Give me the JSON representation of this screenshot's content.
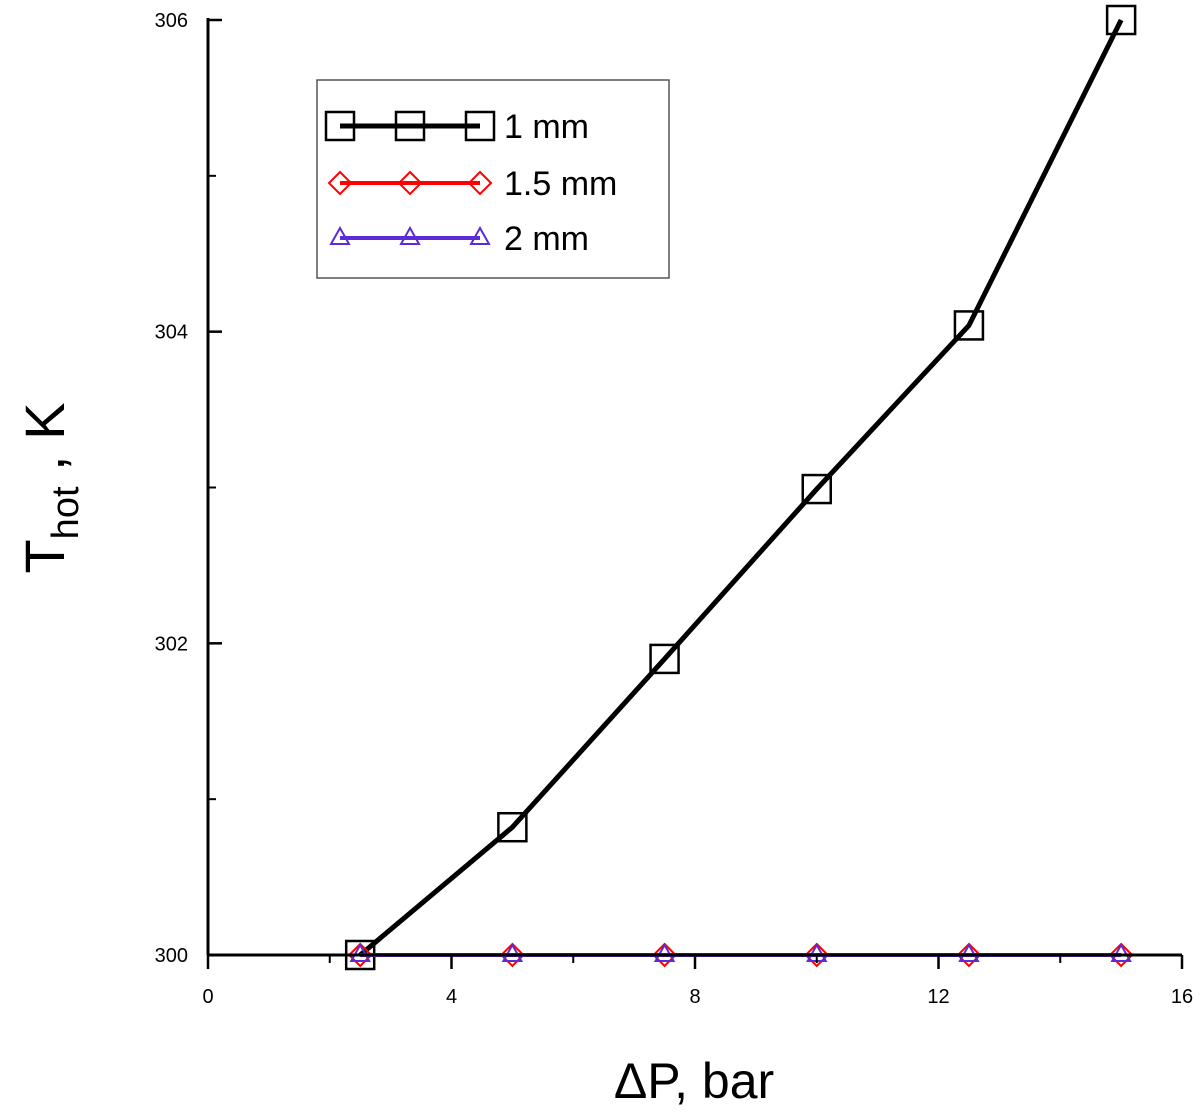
{
  "chart_data": {
    "type": "line",
    "xlabel": "ΔP, bar",
    "ylabel_main": "T",
    "ylabel_sub": "hot",
    "ylabel_unit": " , K",
    "xlim": [
      0,
      16
    ],
    "ylim": [
      300,
      306
    ],
    "x_ticks": [
      0,
      4,
      8,
      12,
      16
    ],
    "x_tick_labels": [
      "0",
      "4",
      "8",
      "12",
      "16"
    ],
    "x_minor_ticks": [
      2,
      6,
      10,
      14
    ],
    "y_ticks": [
      300,
      302,
      304,
      306
    ],
    "y_tick_labels": [
      "300",
      "302",
      "304",
      "306"
    ],
    "y_minor_ticks": [
      301,
      303,
      305
    ],
    "grid": false,
    "legend_position": "top-left",
    "series": [
      {
        "name": "1 mm",
        "color": "#000000",
        "marker": "square",
        "x": [
          2.5,
          5,
          7.5,
          10,
          12.5,
          15
        ],
        "y": [
          300.0,
          300.82,
          301.9,
          302.99,
          304.04,
          306.0
        ]
      },
      {
        "name": "1.5 mm",
        "color": "#ff0000",
        "marker": "diamond",
        "x": [
          2.5,
          5,
          7.5,
          10,
          12.5,
          15
        ],
        "y": [
          300,
          300,
          300,
          300,
          300,
          300
        ]
      },
      {
        "name": "2 mm",
        "color": "#5a2bd6",
        "marker": "triangle",
        "x": [
          2.5,
          5,
          7.5,
          10,
          12.5,
          15
        ],
        "y": [
          300,
          300,
          300,
          300,
          300,
          300
        ]
      }
    ]
  }
}
